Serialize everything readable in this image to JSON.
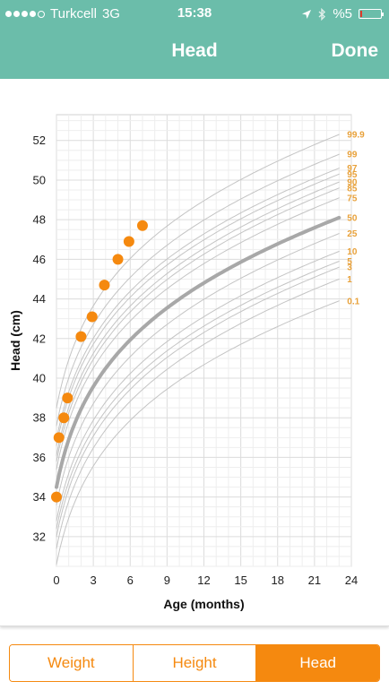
{
  "status_bar": {
    "carrier": "Turkcell",
    "network": "3G",
    "time": "15:38",
    "battery": "%5",
    "icons": [
      "signal-dots-icon",
      "location-arrow-icon",
      "bluetooth-icon",
      "battery-icon"
    ]
  },
  "nav": {
    "title": "Head",
    "done_label": "Done"
  },
  "tabs": [
    {
      "label": "Weight",
      "active": false
    },
    {
      "label": "Height",
      "active": false
    },
    {
      "label": "Head",
      "active": true
    }
  ],
  "colors": {
    "header": "#6bbdaa",
    "accent": "#f5890f",
    "median": "#a8a8a8",
    "percentile": "#c4c4c4",
    "percentile_label": "#e8a13a"
  },
  "chart_data": {
    "type": "line",
    "xlabel": "Age (months)",
    "ylabel": "Head (cm)",
    "xlim": [
      0,
      24
    ],
    "ylim": [
      30.5,
      53.3
    ],
    "x_ticks": [
      0,
      3,
      6,
      9,
      12,
      15,
      18,
      21,
      24
    ],
    "y_ticks": [
      32,
      34,
      36,
      38,
      40,
      42,
      44,
      46,
      48,
      50,
      52
    ],
    "grid": true,
    "percentiles": [
      {
        "name": "0.1",
        "at_0": 30.6,
        "at_23": 43.9
      },
      {
        "name": "1",
        "at_0": 31.4,
        "at_23": 45.0
      },
      {
        "name": "3",
        "at_0": 32.0,
        "at_23": 45.6
      },
      {
        "name": "5",
        "at_0": 32.4,
        "at_23": 45.9
      },
      {
        "name": "10",
        "at_0": 32.8,
        "at_23": 46.4
      },
      {
        "name": "25",
        "at_0": 33.6,
        "at_23": 47.3
      },
      {
        "name": "50",
        "at_0": 34.5,
        "at_23": 48.1,
        "median": true
      },
      {
        "name": "75",
        "at_0": 35.4,
        "at_23": 49.1
      },
      {
        "name": "85",
        "at_0": 35.8,
        "at_23": 49.6
      },
      {
        "name": "90",
        "at_0": 36.1,
        "at_23": 49.9
      },
      {
        "name": "95",
        "at_0": 36.6,
        "at_23": 50.3
      },
      {
        "name": "97",
        "at_0": 36.9,
        "at_23": 50.6
      },
      {
        "name": "99",
        "at_0": 37.6,
        "at_23": 51.3
      },
      {
        "name": "99.9",
        "at_0": 38.5,
        "at_23": 52.3
      }
    ],
    "series": [
      {
        "name": "Head",
        "points": [
          {
            "x": 0,
            "y": 34.0
          },
          {
            "x": 0.2,
            "y": 37.0
          },
          {
            "x": 0.6,
            "y": 38.0
          },
          {
            "x": 0.9,
            "y": 39.0
          },
          {
            "x": 2.0,
            "y": 42.1
          },
          {
            "x": 2.9,
            "y": 43.1
          },
          {
            "x": 3.9,
            "y": 44.7
          },
          {
            "x": 5.0,
            "y": 46.0
          },
          {
            "x": 5.9,
            "y": 46.9
          },
          {
            "x": 7.0,
            "y": 47.7
          }
        ]
      }
    ]
  }
}
